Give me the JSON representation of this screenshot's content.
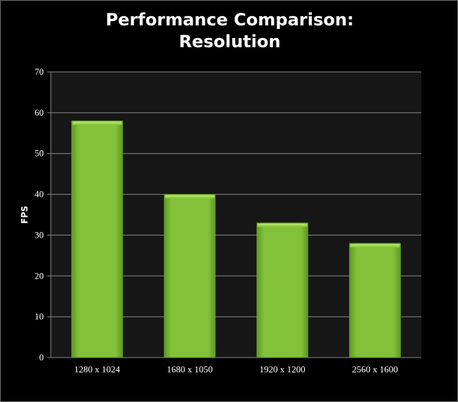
{
  "chart_data": {
    "type": "bar",
    "title_lines": [
      "Performance Comparison:",
      "Resolution"
    ],
    "xlabel": "",
    "ylabel": "FPS",
    "categories": [
      "1280 x 1024",
      "1680 x 1050",
      "1920 x 1200",
      "2560 x 1600"
    ],
    "values": [
      58,
      40,
      33,
      28
    ],
    "ylim": [
      0,
      70
    ],
    "yticks": [
      0,
      10,
      20,
      30,
      40,
      50,
      60,
      70
    ],
    "grid": true,
    "legend": "none",
    "colors": {
      "bar": "#84c13a",
      "bar_light": "#b8ec6a",
      "bar_dark": "#5e9a22",
      "plot_background": "#161616",
      "gridline": "#8a8a8a",
      "text": "#ffffff"
    }
  }
}
